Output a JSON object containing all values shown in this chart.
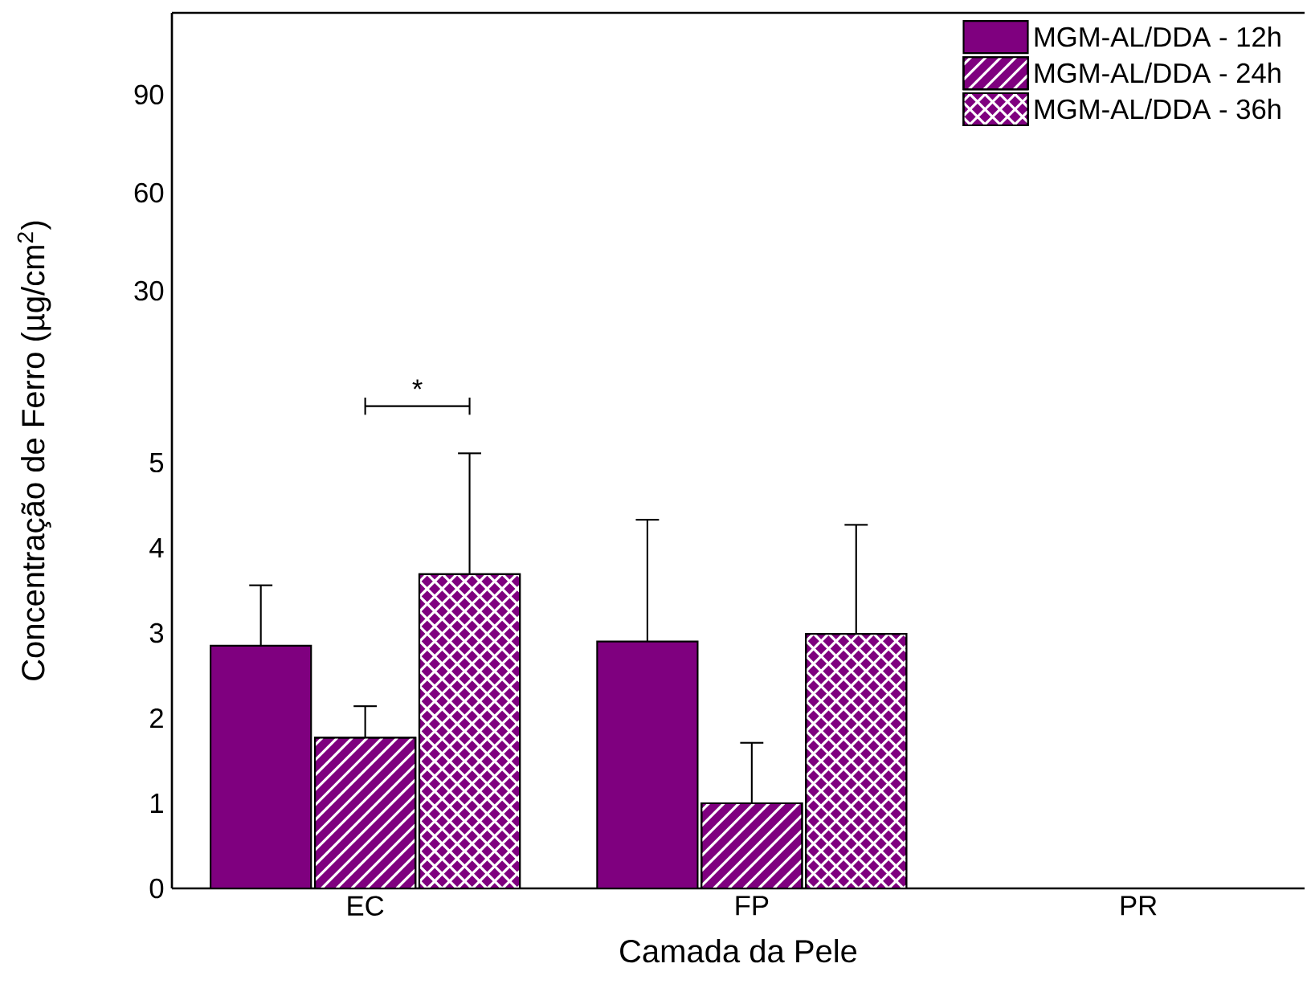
{
  "chart_data": [
    {
      "type": "bar",
      "categories": [
        null,
        null,
        null
      ],
      "values": [
        null,
        null,
        null
      ],
      "ylim": [
        3.5,
        115
      ],
      "yticks": [
        30,
        60,
        90
      ],
      "tick_labels": "y"
    },
    {
      "type": "bar",
      "xlabel": "Camada da Pele",
      "ylabel": "Concentração de Ferro (µg/cm$^{2}$)",
      "categories": [
        "EC",
        "FP",
        "PR"
      ],
      "series": [
        {
          "name": "MGM-AL/DDA - 12h",
          "color": "#7f007f",
          "values": [
            2.85,
            2.9,
            null
          ],
          "errors": [
            [
              2.85,
              3.56
            ],
            [
              2.9,
              4.33
            ],
            null
          ]
        },
        {
          "name": "MGM-AL/DDA - 24h",
          "color": "#7f007f",
          "values": [
            1.77,
            1.0,
            null
          ],
          "errors": [
            [
              1.77,
              2.14
            ],
            [
              1.0,
              1.71
            ],
            null
          ]
        },
        {
          "name": "MGM-AL/DDA - 36h",
          "color": "#7f007f",
          "values": [
            3.69,
            2.99,
            null
          ],
          "errors": [
            [
              3.69,
              5.11
            ],
            [
              2.99,
              4.27
            ],
            null
          ]
        }
      ],
      "ylim": [
        0,
        6
      ],
      "yticks": [
        0,
        1,
        2,
        3,
        4,
        5
      ],
      "annotations": [
        "*"
      ],
      "legend": "top right",
      "grid": false
    }
  ]
}
